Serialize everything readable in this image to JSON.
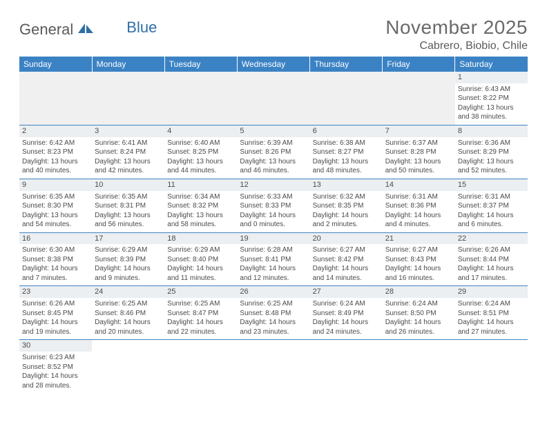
{
  "logo": {
    "part1": "General",
    "part2": "Blue"
  },
  "title": "November 2025",
  "location": "Cabrero, Biobio, Chile",
  "colors": {
    "header_bg": "#3b82c4",
    "header_text": "#ffffff",
    "grid_line": "#3b82c4",
    "daynum_bg": "#eceff1",
    "text": "#4a4a4a",
    "empty_bg": "#f0f0f0",
    "logo_blue": "#2f6fa8"
  },
  "day_names": [
    "Sunday",
    "Monday",
    "Tuesday",
    "Wednesday",
    "Thursday",
    "Friday",
    "Saturday"
  ],
  "weeks": [
    [
      {
        "empty": true
      },
      {
        "empty": true
      },
      {
        "empty": true
      },
      {
        "empty": true
      },
      {
        "empty": true
      },
      {
        "empty": true
      },
      {
        "daynum": "1",
        "sunrise": "Sunrise: 6:43 AM",
        "sunset": "Sunset: 8:22 PM",
        "dl1": "Daylight: 13 hours",
        "dl2": "and 38 minutes."
      }
    ],
    [
      {
        "daynum": "2",
        "sunrise": "Sunrise: 6:42 AM",
        "sunset": "Sunset: 8:23 PM",
        "dl1": "Daylight: 13 hours",
        "dl2": "and 40 minutes."
      },
      {
        "daynum": "3",
        "sunrise": "Sunrise: 6:41 AM",
        "sunset": "Sunset: 8:24 PM",
        "dl1": "Daylight: 13 hours",
        "dl2": "and 42 minutes."
      },
      {
        "daynum": "4",
        "sunrise": "Sunrise: 6:40 AM",
        "sunset": "Sunset: 8:25 PM",
        "dl1": "Daylight: 13 hours",
        "dl2": "and 44 minutes."
      },
      {
        "daynum": "5",
        "sunrise": "Sunrise: 6:39 AM",
        "sunset": "Sunset: 8:26 PM",
        "dl1": "Daylight: 13 hours",
        "dl2": "and 46 minutes."
      },
      {
        "daynum": "6",
        "sunrise": "Sunrise: 6:38 AM",
        "sunset": "Sunset: 8:27 PM",
        "dl1": "Daylight: 13 hours",
        "dl2": "and 48 minutes."
      },
      {
        "daynum": "7",
        "sunrise": "Sunrise: 6:37 AM",
        "sunset": "Sunset: 8:28 PM",
        "dl1": "Daylight: 13 hours",
        "dl2": "and 50 minutes."
      },
      {
        "daynum": "8",
        "sunrise": "Sunrise: 6:36 AM",
        "sunset": "Sunset: 8:29 PM",
        "dl1": "Daylight: 13 hours",
        "dl2": "and 52 minutes."
      }
    ],
    [
      {
        "daynum": "9",
        "sunrise": "Sunrise: 6:35 AM",
        "sunset": "Sunset: 8:30 PM",
        "dl1": "Daylight: 13 hours",
        "dl2": "and 54 minutes."
      },
      {
        "daynum": "10",
        "sunrise": "Sunrise: 6:35 AM",
        "sunset": "Sunset: 8:31 PM",
        "dl1": "Daylight: 13 hours",
        "dl2": "and 56 minutes."
      },
      {
        "daynum": "11",
        "sunrise": "Sunrise: 6:34 AM",
        "sunset": "Sunset: 8:32 PM",
        "dl1": "Daylight: 13 hours",
        "dl2": "and 58 minutes."
      },
      {
        "daynum": "12",
        "sunrise": "Sunrise: 6:33 AM",
        "sunset": "Sunset: 8:33 PM",
        "dl1": "Daylight: 14 hours",
        "dl2": "and 0 minutes."
      },
      {
        "daynum": "13",
        "sunrise": "Sunrise: 6:32 AM",
        "sunset": "Sunset: 8:35 PM",
        "dl1": "Daylight: 14 hours",
        "dl2": "and 2 minutes."
      },
      {
        "daynum": "14",
        "sunrise": "Sunrise: 6:31 AM",
        "sunset": "Sunset: 8:36 PM",
        "dl1": "Daylight: 14 hours",
        "dl2": "and 4 minutes."
      },
      {
        "daynum": "15",
        "sunrise": "Sunrise: 6:31 AM",
        "sunset": "Sunset: 8:37 PM",
        "dl1": "Daylight: 14 hours",
        "dl2": "and 6 minutes."
      }
    ],
    [
      {
        "daynum": "16",
        "sunrise": "Sunrise: 6:30 AM",
        "sunset": "Sunset: 8:38 PM",
        "dl1": "Daylight: 14 hours",
        "dl2": "and 7 minutes."
      },
      {
        "daynum": "17",
        "sunrise": "Sunrise: 6:29 AM",
        "sunset": "Sunset: 8:39 PM",
        "dl1": "Daylight: 14 hours",
        "dl2": "and 9 minutes."
      },
      {
        "daynum": "18",
        "sunrise": "Sunrise: 6:29 AM",
        "sunset": "Sunset: 8:40 PM",
        "dl1": "Daylight: 14 hours",
        "dl2": "and 11 minutes."
      },
      {
        "daynum": "19",
        "sunrise": "Sunrise: 6:28 AM",
        "sunset": "Sunset: 8:41 PM",
        "dl1": "Daylight: 14 hours",
        "dl2": "and 12 minutes."
      },
      {
        "daynum": "20",
        "sunrise": "Sunrise: 6:27 AM",
        "sunset": "Sunset: 8:42 PM",
        "dl1": "Daylight: 14 hours",
        "dl2": "and 14 minutes."
      },
      {
        "daynum": "21",
        "sunrise": "Sunrise: 6:27 AM",
        "sunset": "Sunset: 8:43 PM",
        "dl1": "Daylight: 14 hours",
        "dl2": "and 16 minutes."
      },
      {
        "daynum": "22",
        "sunrise": "Sunrise: 6:26 AM",
        "sunset": "Sunset: 8:44 PM",
        "dl1": "Daylight: 14 hours",
        "dl2": "and 17 minutes."
      }
    ],
    [
      {
        "daynum": "23",
        "sunrise": "Sunrise: 6:26 AM",
        "sunset": "Sunset: 8:45 PM",
        "dl1": "Daylight: 14 hours",
        "dl2": "and 19 minutes."
      },
      {
        "daynum": "24",
        "sunrise": "Sunrise: 6:25 AM",
        "sunset": "Sunset: 8:46 PM",
        "dl1": "Daylight: 14 hours",
        "dl2": "and 20 minutes."
      },
      {
        "daynum": "25",
        "sunrise": "Sunrise: 6:25 AM",
        "sunset": "Sunset: 8:47 PM",
        "dl1": "Daylight: 14 hours",
        "dl2": "and 22 minutes."
      },
      {
        "daynum": "26",
        "sunrise": "Sunrise: 6:25 AM",
        "sunset": "Sunset: 8:48 PM",
        "dl1": "Daylight: 14 hours",
        "dl2": "and 23 minutes."
      },
      {
        "daynum": "27",
        "sunrise": "Sunrise: 6:24 AM",
        "sunset": "Sunset: 8:49 PM",
        "dl1": "Daylight: 14 hours",
        "dl2": "and 24 minutes."
      },
      {
        "daynum": "28",
        "sunrise": "Sunrise: 6:24 AM",
        "sunset": "Sunset: 8:50 PM",
        "dl1": "Daylight: 14 hours",
        "dl2": "and 26 minutes."
      },
      {
        "daynum": "29",
        "sunrise": "Sunrise: 6:24 AM",
        "sunset": "Sunset: 8:51 PM",
        "dl1": "Daylight: 14 hours",
        "dl2": "and 27 minutes."
      }
    ],
    [
      {
        "daynum": "30",
        "sunrise": "Sunrise: 6:23 AM",
        "sunset": "Sunset: 8:52 PM",
        "dl1": "Daylight: 14 hours",
        "dl2": "and 28 minutes."
      },
      {
        "empty": true,
        "last": true
      },
      {
        "empty": true,
        "last": true
      },
      {
        "empty": true,
        "last": true
      },
      {
        "empty": true,
        "last": true
      },
      {
        "empty": true,
        "last": true
      },
      {
        "empty": true,
        "last": true
      }
    ]
  ]
}
